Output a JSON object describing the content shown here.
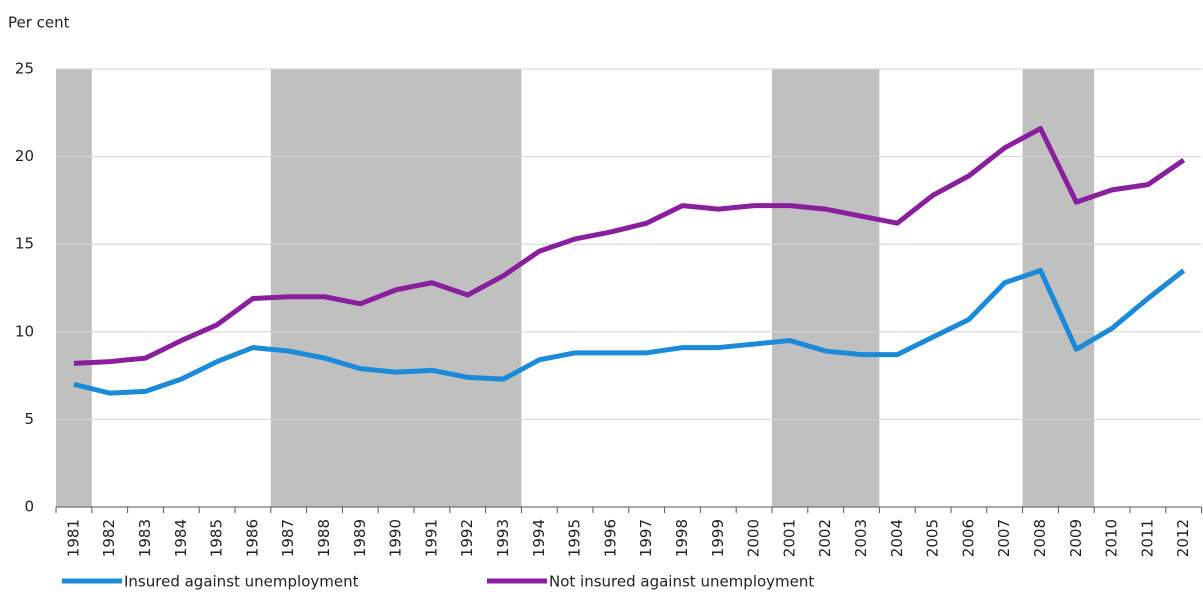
{
  "chart_data": {
    "type": "line",
    "y_axis_label": "Per cent",
    "categories": [
      "1981",
      "1982",
      "1983",
      "1984",
      "1985",
      "1986",
      "1987",
      "1988",
      "1989",
      "1990",
      "1991",
      "1992",
      "1993",
      "1994",
      "1995",
      "1996",
      "1997",
      "1998",
      "1999",
      "2000",
      "2001",
      "2002",
      "2003",
      "2004",
      "2005",
      "2006",
      "2007",
      "2008",
      "2009",
      "2010",
      "2011",
      "2012"
    ],
    "series": [
      {
        "name": "Insured against unemployment",
        "color": "#1b8ad9",
        "values": [
          7.0,
          6.5,
          6.6,
          7.3,
          8.3,
          9.1,
          8.9,
          8.5,
          7.9,
          7.7,
          7.8,
          7.4,
          7.3,
          8.4,
          8.8,
          8.8,
          8.8,
          9.1,
          9.1,
          9.3,
          9.5,
          8.9,
          8.7,
          8.7,
          9.7,
          10.7,
          12.8,
          13.5,
          9.0,
          10.2,
          11.9,
          13.5
        ]
      },
      {
        "name": "Not insured against unemployment",
        "color": "#8a1f9e",
        "values": [
          8.2,
          8.3,
          8.5,
          9.5,
          10.4,
          11.9,
          12.0,
          12.0,
          11.6,
          12.4,
          12.8,
          12.1,
          13.2,
          14.6,
          15.3,
          15.7,
          16.2,
          17.2,
          17.0,
          17.2,
          17.2,
          17.0,
          16.6,
          16.2,
          17.8,
          18.9,
          20.5,
          21.6,
          17.4,
          18.1,
          18.4,
          19.8
        ]
      }
    ],
    "shaded_ranges": [
      [
        "1981",
        "1981"
      ],
      [
        "1987",
        "1993"
      ],
      [
        "2001",
        "2003"
      ],
      [
        "2008",
        "2009"
      ]
    ],
    "shade_color": "#c0c0c0",
    "ylim": [
      0,
      25
    ],
    "yticks": [
      0,
      5,
      10,
      15,
      20,
      25
    ],
    "grid": true,
    "legend": "bottom"
  }
}
